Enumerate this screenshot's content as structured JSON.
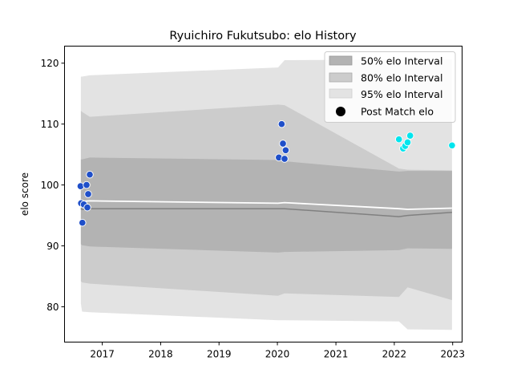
{
  "chart_data": {
    "type": "scatter",
    "title": "Ryuichiro Fukutsubo: elo History",
    "xlabel": "",
    "ylabel": "elo score",
    "xlim": [
      "2016-05-10",
      "2023-03-01"
    ],
    "ylim": [
      74.2,
      122.8
    ],
    "x_ticks": [
      "2017",
      "2018",
      "2019",
      "2020",
      "2021",
      "2022",
      "2023"
    ],
    "y_ticks": [
      80,
      90,
      100,
      110,
      120
    ],
    "grid": false,
    "legend": {
      "placement": "top-right",
      "entries": [
        "50% elo Interval",
        "80% elo Interval",
        "95% elo Interval",
        "Post Match elo"
      ]
    },
    "colors": {
      "band50": "#b3b3b3",
      "band80": "#cccccc",
      "band95": "#e3e3e3",
      "mean_line": "#ffffff",
      "median_line": "#808080",
      "points_early": "#1f4fc9",
      "points_late": "#00e5ee"
    },
    "bands": {
      "dates": [
        "2016-08-20",
        "2016-08-28",
        "2016-10-15",
        "2020-01-05",
        "2020-02-15",
        "2022-01-30",
        "2022-03-25",
        "2022-12-28"
      ],
      "p95": {
        "upper": [
          117.8,
          117.8,
          118.0,
          119.3,
          120.5,
          120.6,
          120.6,
          120.6
        ],
        "lower": [
          80.5,
          79.2,
          79.1,
          77.8,
          77.8,
          77.6,
          76.3,
          76.2
        ]
      },
      "p80": {
        "upper": [
          112.2,
          112.0,
          111.2,
          113.2,
          113.1,
          102.7,
          102.5,
          102.4
        ],
        "lower": [
          84.2,
          84.0,
          83.8,
          81.8,
          82.2,
          81.6,
          83.2,
          81.1
        ]
      },
      "p50": {
        "upper": [
          104.2,
          104.2,
          104.5,
          104.1,
          103.9,
          102.2,
          102.3,
          102.3
        ],
        "lower": [
          90.3,
          90.1,
          89.9,
          88.9,
          89.0,
          89.3,
          89.6,
          89.5
        ]
      },
      "mean": [
        97.3,
        97.3,
        97.4,
        97.0,
        97.1,
        96.1,
        96.0,
        96.2
      ],
      "median": [
        96.1,
        96.0,
        96.1,
        96.1,
        96.1,
        94.8,
        95.0,
        95.5
      ]
    },
    "series": [
      {
        "name": "",
        "color_key": "points_early",
        "points": [
          {
            "x": "2016-08-18",
            "y": 99.8
          },
          {
            "x": "2016-08-22",
            "y": 97.0
          },
          {
            "x": "2016-08-30",
            "y": 93.8
          },
          {
            "x": "2016-09-08",
            "y": 96.8
          },
          {
            "x": "2016-09-25",
            "y": 100.0
          },
          {
            "x": "2016-09-30",
            "y": 96.3
          },
          {
            "x": "2016-10-05",
            "y": 98.5
          },
          {
            "x": "2016-10-15",
            "y": 101.7
          },
          {
            "x": "2020-01-10",
            "y": 104.5
          },
          {
            "x": "2020-01-28",
            "y": 110.0
          },
          {
            "x": "2020-02-05",
            "y": 106.8
          },
          {
            "x": "2020-02-15",
            "y": 104.3
          },
          {
            "x": "2020-02-22",
            "y": 105.7
          }
        ]
      },
      {
        "name": "",
        "color_key": "points_late",
        "points": [
          {
            "x": "2022-01-30",
            "y": 107.5
          },
          {
            "x": "2022-02-25",
            "y": 106.0
          },
          {
            "x": "2022-03-10",
            "y": 106.4
          },
          {
            "x": "2022-03-25",
            "y": 107.0
          },
          {
            "x": "2022-04-10",
            "y": 108.1
          },
          {
            "x": "2022-12-28",
            "y": 106.5
          }
        ]
      }
    ]
  }
}
